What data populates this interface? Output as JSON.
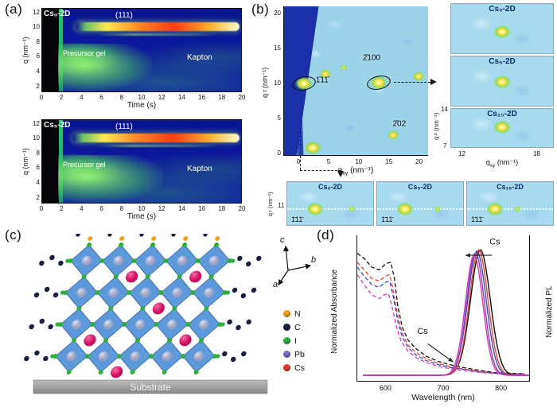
{
  "panels": {
    "a": {
      "label": "(a)"
    },
    "b": {
      "label": "(b)"
    },
    "c": {
      "label": "(c)",
      "substrate": "Substrate",
      "axes": {
        "a": "a",
        "b": "b",
        "c": "c"
      },
      "legend": [
        {
          "label": "N",
          "color": "#f2a61c"
        },
        {
          "label": "C",
          "color": "#17203e"
        },
        {
          "label": "I",
          "color": "#2fae3f"
        },
        {
          "label": "Pb",
          "color": "#7d6fc8"
        },
        {
          "label": "Cs",
          "color": "#e03c2c"
        }
      ]
    },
    "d": {
      "label": "(d)"
    }
  },
  "chart_data": [
    {
      "id": "kinetics-cs0",
      "type": "heatmap",
      "title": "Cs₀-2D",
      "xlabel": "Time (s)",
      "ylabel": "q (nm⁻¹)",
      "xlim": [
        0,
        20
      ],
      "ylim": [
        1,
        12
      ],
      "xticks": [
        0,
        2,
        4,
        6,
        8,
        10,
        12,
        14,
        16,
        18,
        20
      ],
      "yticks": [
        12,
        10,
        8,
        6,
        4,
        2
      ],
      "annotations": [
        {
          "text": "(111)",
          "q": 10,
          "t_onset": 4
        },
        {
          "text": "Precursor gel",
          "q_range": [
            2,
            6
          ],
          "t_range": [
            1.8,
            7
          ]
        },
        {
          "text": "Kapton",
          "q_range": [
            3,
            6
          ]
        }
      ]
    },
    {
      "id": "kinetics-cs5",
      "type": "heatmap",
      "title": "Cs₅-2D",
      "xlabel": "Time (s)",
      "ylabel": "q (nm⁻¹)",
      "xlim": [
        0,
        20
      ],
      "ylim": [
        1,
        12
      ],
      "xticks": [
        0,
        2,
        4,
        6,
        8,
        10,
        12,
        14,
        16,
        18,
        20
      ],
      "yticks": [
        12,
        10,
        8,
        6,
        4,
        2
      ],
      "annotations": [
        {
          "text": "(111)",
          "q": 10,
          "t_onset": 3.5
        },
        {
          "text": "Precursor gel",
          "q_range": [
            2,
            6
          ],
          "t_range": [
            1.8,
            7
          ]
        },
        {
          "text": "Kapton",
          "q_range": [
            3,
            6
          ]
        }
      ]
    },
    {
      "id": "giwaxs-map",
      "type": "heatmap",
      "xlabel": "qxy (nm⁻¹)",
      "ylabel": "qz (nm⁻¹)",
      "xlabel_parts": [
        "q",
        "xy",
        " (nm⁻¹)"
      ],
      "ylabel_parts": [
        "q",
        "z",
        " (nm⁻¹)"
      ],
      "xlim": [
        -2.5,
        21.5
      ],
      "ylim": [
        0,
        21
      ],
      "xticks": [
        0,
        5,
        10,
        15,
        20
      ],
      "yticks": [
        0,
        5,
        10,
        15,
        20
      ],
      "spots": [
        {
          "qxy": 0.8,
          "qz": 10.0,
          "size": "l"
        },
        {
          "qxy": 4.3,
          "qz": 11.4,
          "size": "m"
        },
        {
          "qxy": 7.4,
          "qz": 12.3,
          "size": "s"
        },
        {
          "qxy": 13.2,
          "qz": 10.1,
          "size": "l"
        },
        {
          "qxy": 15.6,
          "qz": 2.6,
          "size": "m"
        },
        {
          "qxy": 19.8,
          "qz": 11.0,
          "size": "m"
        },
        {
          "qxy": 2.3,
          "qz": 0.8,
          "size": "l"
        }
      ],
      "circles": [
        {
          "qxy": 0.8,
          "qz": 10.0
        },
        {
          "qxy": 13.2,
          "qz": 10.1
        }
      ],
      "labels": [
        {
          "text": "1̄11̄",
          "qxy": 3.8,
          "qz": 10.4
        },
        {
          "text": "2̄100",
          "qxy": 12.0,
          "qz": 13.6
        },
        {
          "text": "2̄02",
          "qxy": 16.6,
          "qz": 4.2
        }
      ]
    },
    {
      "id": "giwaxs-insets-2100",
      "type": "heatmap",
      "panels": [
        "Cs₀-2D",
        "Cs₅-2D",
        "Cs₁₅-2D"
      ],
      "xlabel_parts": [
        "q",
        "xy",
        " (nm⁻¹)"
      ],
      "ylabel_parts": [
        "q",
        "z",
        " (nm⁻¹)"
      ],
      "xticks": [
        12,
        18
      ],
      "yticks": [
        14,
        7
      ]
    },
    {
      "id": "giwaxs-insets-111",
      "type": "heatmap",
      "panels": [
        "Cs₀-2D",
        "Cs₅-2D",
        "Cs₁₅-2D"
      ],
      "ylabel_parts": [
        "q",
        "z",
        " (nm⁻¹)"
      ],
      "yticks": [
        11
      ],
      "spot_label": "1̄11̄"
    },
    {
      "id": "spectra",
      "type": "line",
      "xlabel": "Wavelength (nm)",
      "ylabel_left": "Normalized Absorbance",
      "ylabel_right": "Normalized PL",
      "xlim": [
        550,
        850
      ],
      "xticks": [
        600,
        700,
        800
      ],
      "absorbance_series": [
        {
          "name": "black",
          "color": "#111111",
          "points": [
            [
              550,
              0.97
            ],
            [
              562,
              0.93
            ],
            [
              575,
              0.86
            ],
            [
              588,
              0.84
            ],
            [
              600,
              0.89
            ],
            [
              608,
              0.9
            ],
            [
              614,
              0.78
            ],
            [
              620,
              0.55
            ],
            [
              628,
              0.38
            ],
            [
              638,
              0.28
            ],
            [
              652,
              0.21
            ],
            [
              670,
              0.15
            ],
            [
              690,
              0.11
            ],
            [
              710,
              0.085
            ],
            [
              735,
              0.06
            ],
            [
              760,
              0.04
            ],
            [
              790,
              0.02
            ],
            [
              840,
              0.012
            ]
          ]
        },
        {
          "name": "red",
          "color": "#e8452c",
          "points": [
            [
              550,
              0.9
            ],
            [
              562,
              0.84
            ],
            [
              575,
              0.77
            ],
            [
              588,
              0.75
            ],
            [
              598,
              0.79
            ],
            [
              606,
              0.8
            ],
            [
              612,
              0.68
            ],
            [
              620,
              0.47
            ],
            [
              628,
              0.33
            ],
            [
              638,
              0.24
            ],
            [
              652,
              0.18
            ],
            [
              670,
              0.13
            ],
            [
              690,
              0.095
            ],
            [
              710,
              0.07
            ],
            [
              735,
              0.05
            ],
            [
              760,
              0.032
            ],
            [
              790,
              0.018
            ],
            [
              840,
              0.01
            ]
          ]
        },
        {
          "name": "blue",
          "color": "#3b4fc0",
          "points": [
            [
              550,
              0.86
            ],
            [
              562,
              0.79
            ],
            [
              575,
              0.72
            ],
            [
              588,
              0.7
            ],
            [
              598,
              0.74
            ],
            [
              606,
              0.75
            ],
            [
              612,
              0.63
            ],
            [
              620,
              0.43
            ],
            [
              628,
              0.3
            ],
            [
              638,
              0.22
            ],
            [
              652,
              0.16
            ],
            [
              670,
              0.115
            ],
            [
              690,
              0.085
            ],
            [
              710,
              0.062
            ],
            [
              735,
              0.045
            ],
            [
              760,
              0.028
            ],
            [
              790,
              0.015
            ],
            [
              840,
              0.008
            ]
          ]
        },
        {
          "name": "magenta",
          "color": "#cf3fae",
          "points": [
            [
              550,
              0.8
            ],
            [
              562,
              0.72
            ],
            [
              575,
              0.64
            ],
            [
              588,
              0.61
            ],
            [
              596,
              0.64
            ],
            [
              604,
              0.65
            ],
            [
              610,
              0.55
            ],
            [
              618,
              0.38
            ],
            [
              626,
              0.27
            ],
            [
              638,
              0.19
            ],
            [
              652,
              0.14
            ],
            [
              670,
              0.1
            ],
            [
              690,
              0.072
            ],
            [
              710,
              0.052
            ],
            [
              735,
              0.038
            ],
            [
              760,
              0.024
            ],
            [
              790,
              0.012
            ],
            [
              840,
              0.006
            ]
          ]
        }
      ],
      "pl_series": [
        {
          "name": "black",
          "color": "#111111",
          "peak": 763,
          "sigma": 17,
          "height": 1.0
        },
        {
          "name": "red",
          "color": "#e8452c",
          "peak": 760,
          "sigma": 16,
          "height": 1.0
        },
        {
          "name": "blue",
          "color": "#3b4fc0",
          "peak": 757,
          "sigma": 16,
          "height": 0.99
        },
        {
          "name": "violet",
          "color": "#8a3fc0",
          "peak": 754.5,
          "sigma": 15,
          "height": 0.98
        },
        {
          "name": "magenta",
          "color": "#cf3fae",
          "peak": 752,
          "sigma": 15,
          "height": 0.96
        }
      ],
      "annotations": [
        {
          "text": "Cs",
          "x": 788,
          "y": 1.04,
          "arrow": {
            "x1": 783,
            "y1": 0.955,
            "x2": 737,
            "y2": 0.955
          }
        },
        {
          "text": "Cs",
          "x": 663,
          "y": 0.33,
          "arrow": {
            "x1": 672,
            "y1": 0.25,
            "x2": 716,
            "y2": 0.105
          }
        }
      ]
    }
  ]
}
